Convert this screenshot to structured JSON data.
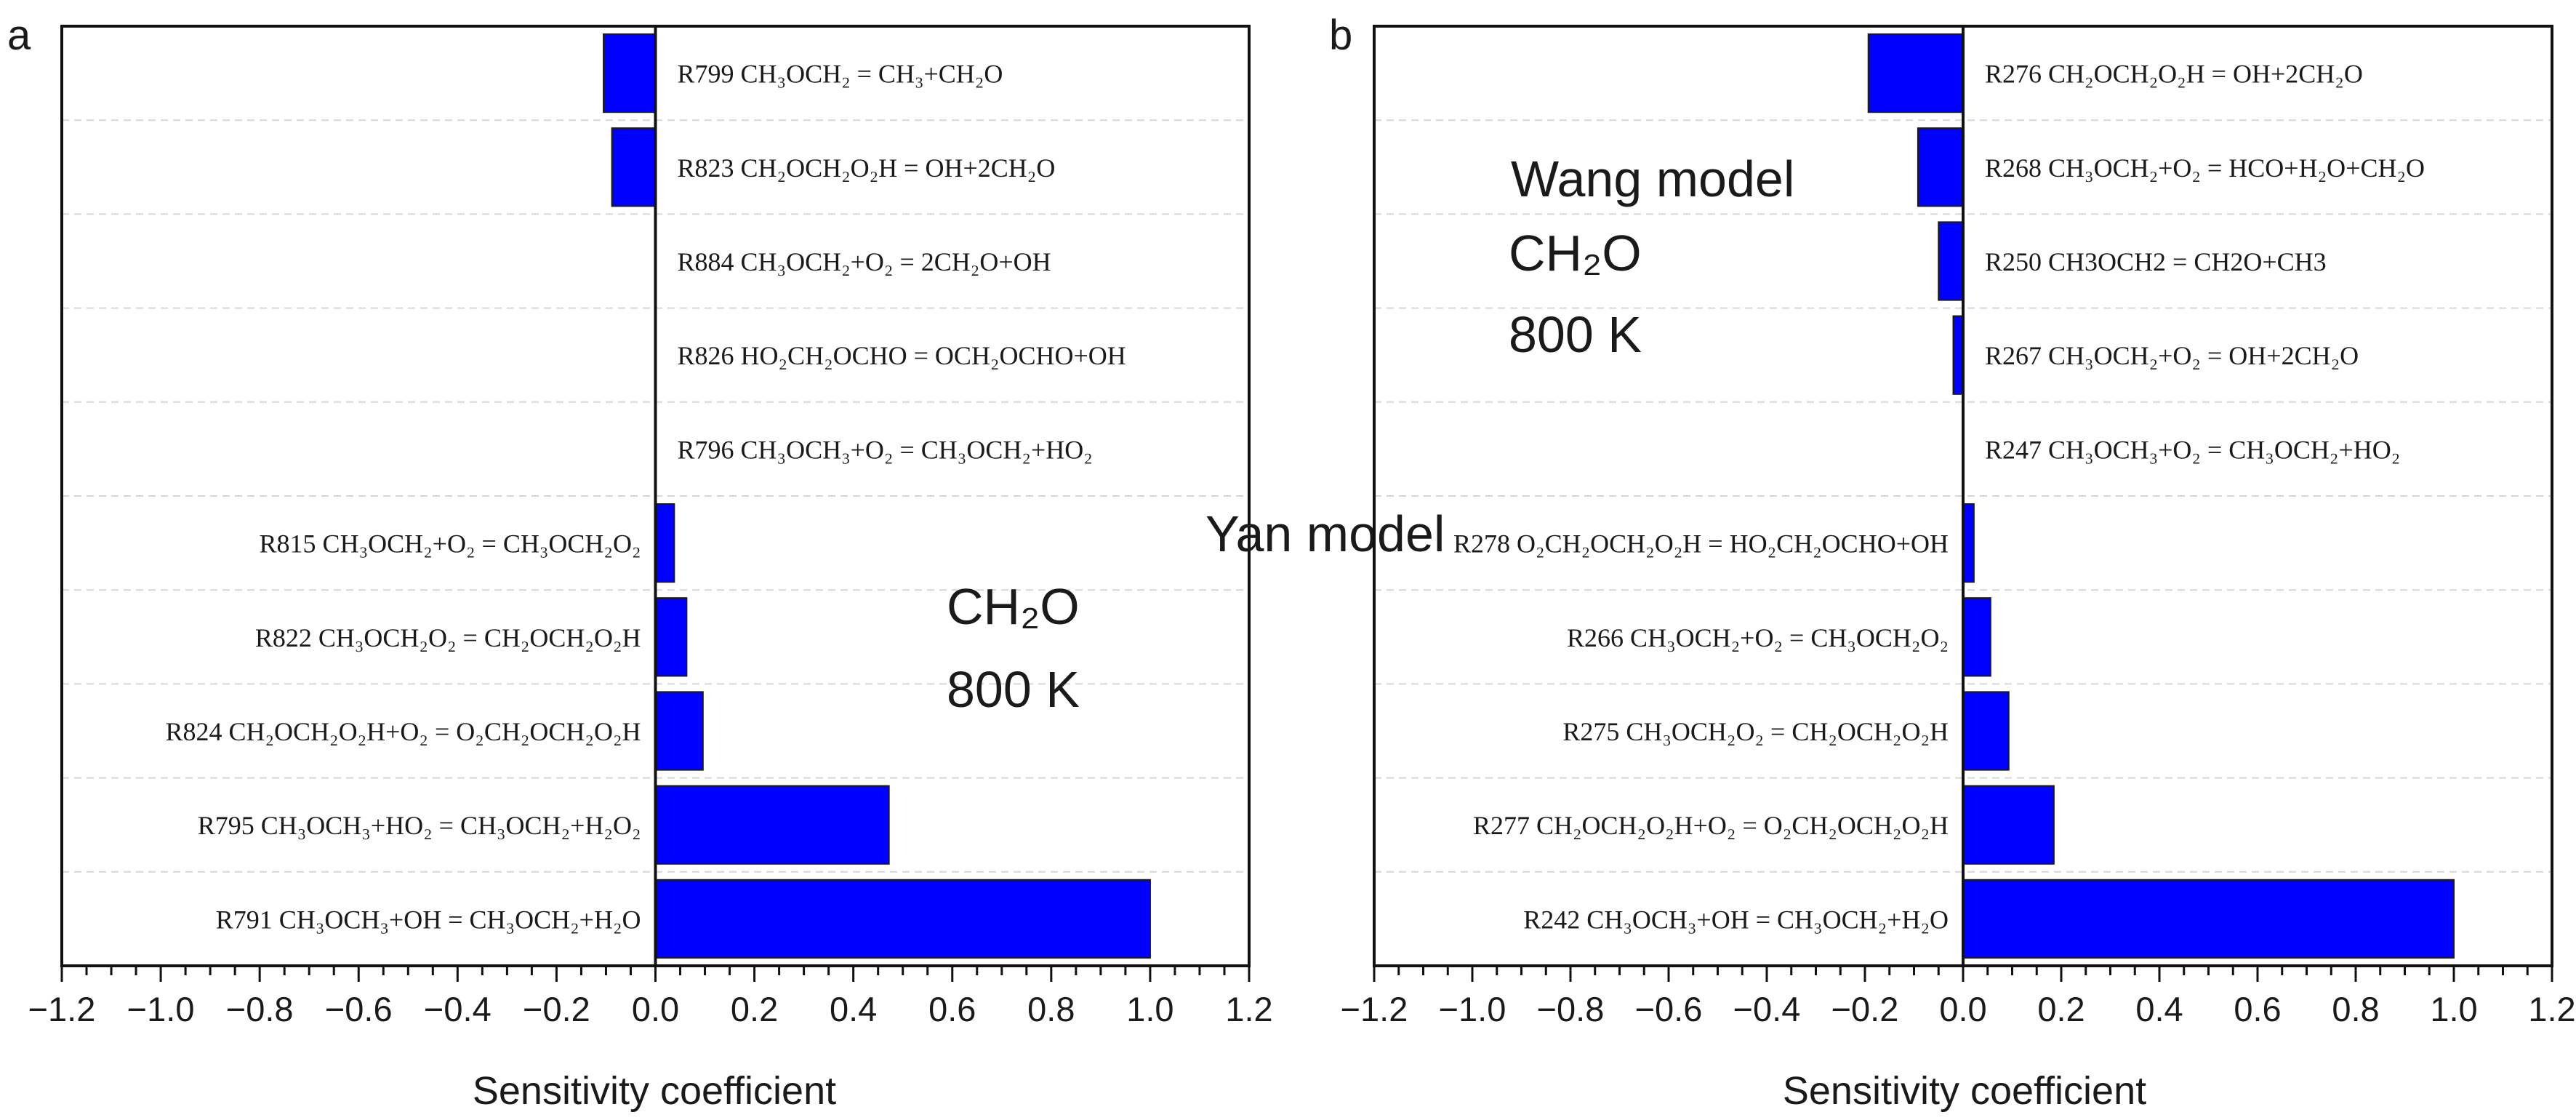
{
  "colors": {
    "bar": "#0000FF",
    "bar_stroke": "#1a1a1a",
    "axis": "#111111",
    "grid": "#d6d6d6",
    "background": "#ffffff"
  },
  "chart_data": [
    {
      "type": "bar",
      "orientation": "horizontal",
      "panel_label": "a",
      "xlabel": "Sensitivity coefficient",
      "xlim": [
        -1.2,
        1.2
      ],
      "xticks": [
        "−1.2",
        "−1.0",
        "−0.8",
        "−0.6",
        "−0.4",
        "−0.2",
        "0.0",
        "0.2",
        "0.4",
        "0.6",
        "0.8",
        "1.0",
        "1.2"
      ],
      "grid": "horizontal dashed",
      "annotation": [
        "Yan model",
        "CH₂O",
        "800 K"
      ],
      "categories": [
        "R799 CH₃OCH₂ = CH₃+CH₂O",
        "R823 CH₂OCH₂O₂H = OH+2CH₂O",
        "R884 CH₃OCH₂+O₂ = 2CH₂O+OH",
        "R826 HO₂CH₂OCHO = OCH₂OCHO+OH",
        "R796 CH₃OCH₃+O₂ = CH₃OCH₂+HO₂",
        "R815 CH₃OCH₂+O₂ = CH₃OCH₂O₂",
        "R822 CH₃OCH₂O₂ = CH₂OCH₂O₂H",
        "R824 CH₂OCH₂O₂H+O₂ = O₂CH₂OCH₂O₂H",
        "R795 CH₃OCH₃+HO₂ = CH₃OCH₂+H₂O₂",
        "R791 CH₃OCH₃+OH = CH₃OCH₂+H₂O"
      ],
      "values": [
        -0.105,
        -0.088,
        0.0,
        0.0,
        0.0,
        0.038,
        0.063,
        0.096,
        0.472,
        1.0
      ]
    },
    {
      "type": "bar",
      "orientation": "horizontal",
      "panel_label": "b",
      "xlabel": "Sensitivity coefficient",
      "xlim": [
        -1.2,
        1.2
      ],
      "xticks": [
        "−1.2",
        "−1.0",
        "−0.8",
        "−0.6",
        "−0.4",
        "−0.2",
        "0.0",
        "0.2",
        "0.4",
        "0.6",
        "0.8",
        "1.0",
        "1.2"
      ],
      "grid": "horizontal dashed",
      "annotation": [
        "Wang model",
        "CH₂O",
        "800 K"
      ],
      "categories": [
        "R276 CH₂OCH₂O₂H = OH+2CH₂O",
        "R268 CH₃OCH₂+O₂ = HCO+H₂O+CH₂O",
        "R250  CH3OCH2 = CH2O+CH3",
        "R267 CH₃OCH₂+O₂ = OH+2CH₂O",
        "R247 CH₃OCH₃+O₂ = CH₃OCH₂+HO₂",
        "R278 O₂CH₂OCH₂O₂H = HO₂CH₂OCHO+OH",
        "R266 CH₃OCH₂+O₂ = CH₃OCH₂O₂",
        "R275 CH₃OCH₂O₂ = CH₂OCH₂O₂H",
        "R277 CH₂OCH₂O₂H+O₂ = O₂CH₂OCH₂O₂H",
        "R242 CH₃OCH₃+OH = CH₃OCH₂+H₂O"
      ],
      "values": [
        -0.193,
        -0.092,
        -0.05,
        -0.02,
        0.0,
        0.022,
        0.056,
        0.093,
        0.185,
        1.0
      ]
    }
  ]
}
